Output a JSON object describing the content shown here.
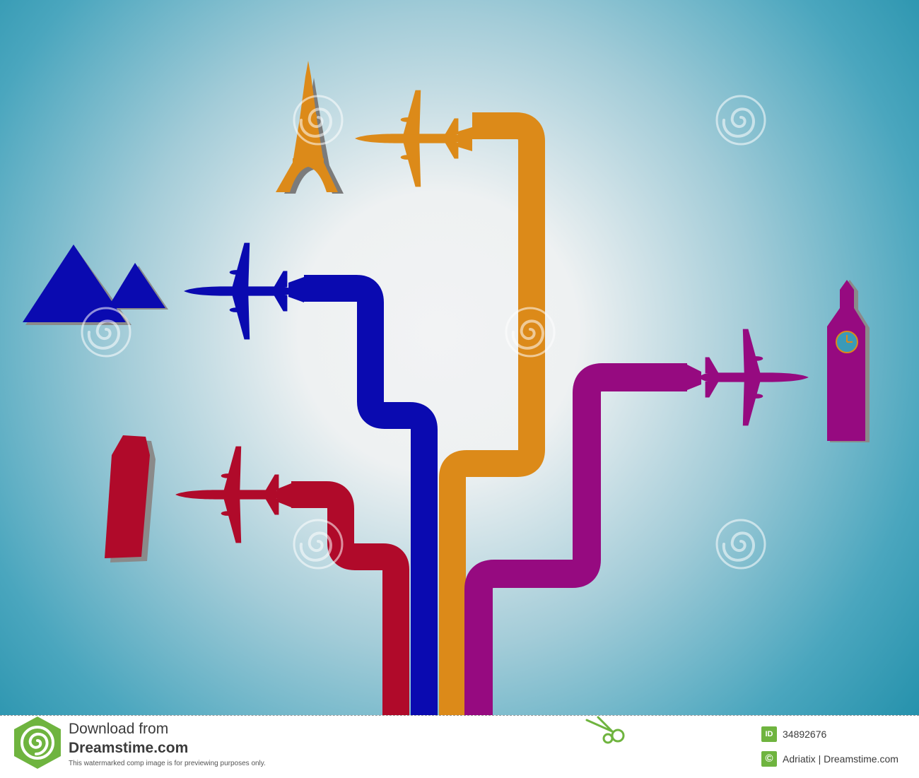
{
  "colors": {
    "background_center": "#f2f3f4",
    "background_edge": "#1f8ea9",
    "orange": "#dc8a19",
    "blue": "#0a0ab0",
    "magenta": "#960a80",
    "red": "#b00a2a",
    "watermark_green": "#6fb43f"
  },
  "scene": {
    "icons": [
      "eiffel-tower",
      "pyramids",
      "leaning-tower",
      "big-ben-clock-tower",
      "airplane"
    ]
  },
  "footer": {
    "line1": "Download from",
    "line2": "Dreamstime.com",
    "note": "This watermarked comp image is for previewing purposes only.",
    "id_label": "ID",
    "id_value": "34892676",
    "copyright_symbol": "©",
    "credit": "Adriatix | Dreamstime.com"
  }
}
